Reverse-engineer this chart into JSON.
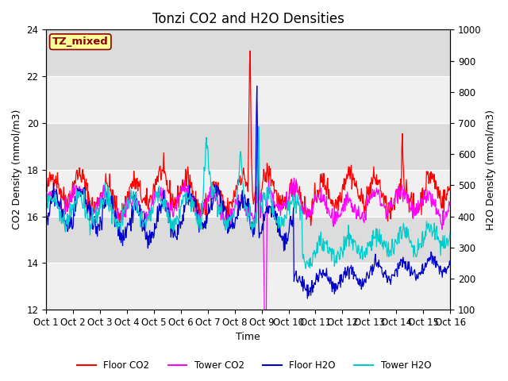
{
  "title": "Tonzi CO2 and H2O Densities",
  "xlabel": "Time",
  "ylabel_left": "CO2 Density (mmol/m3)",
  "ylabel_right": "H2O Density (mmol/m3)",
  "co2_ylim": [
    12,
    24
  ],
  "h2o_ylim": [
    100,
    1000
  ],
  "x_tick_labels": [
    "Oct 1",
    "Oct 2",
    "Oct 3",
    "Oct 4",
    "Oct 5",
    "Oct 6",
    "Oct 7",
    "Oct 8",
    "Oct 9",
    "Oct 10",
    "Oct 11",
    "Oct 12",
    "Oct 13",
    "Oct 14",
    "Oct 15",
    "Oct 16"
  ],
  "n_days": 15,
  "n_points_per_day": 48,
  "annotation_text": "TZ_mixed",
  "annotation_color": "#8B0000",
  "annotation_bg": "#FFFF99",
  "annotation_edge": "#8B0000",
  "colors": {
    "floor_co2": "#FF0000",
    "tower_co2": "#FF00FF",
    "floor_h2o": "#0000CC",
    "tower_h2o": "#00CCCC"
  },
  "legend_labels": [
    "Floor CO2",
    "Tower CO2",
    "Floor H2O",
    "Tower H2O"
  ],
  "bg_color": "#DCDCDC",
  "band_color": "#F0F0F0",
  "title_fontsize": 12,
  "axis_label_fontsize": 9,
  "tick_fontsize": 8.5
}
